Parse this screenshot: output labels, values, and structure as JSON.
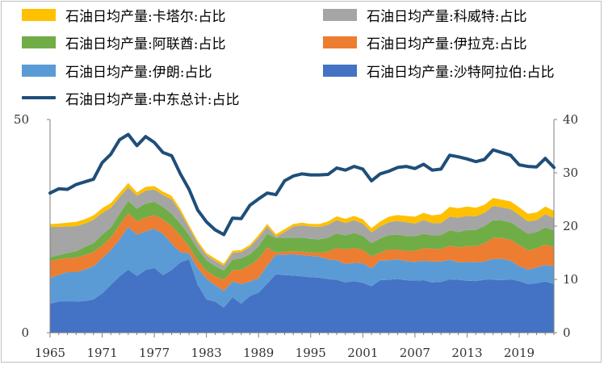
{
  "chart_data": {
    "type": "area",
    "title": "",
    "xlabel": "",
    "ylabel": "",
    "ylim_left": [
      0,
      50
    ],
    "ylim_right": [
      0,
      40
    ],
    "left_ticks": [
      "0",
      "50"
    ],
    "right_ticks": [
      "0",
      "10",
      "20",
      "30",
      "40"
    ],
    "x_tick_labels": [
      "1965",
      "1971",
      "1977",
      "1983",
      "1989",
      "1995",
      "2001",
      "2007",
      "2013",
      "2019"
    ],
    "x": [
      1965,
      1966,
      1967,
      1968,
      1969,
      1970,
      1971,
      1972,
      1973,
      1974,
      1975,
      1976,
      1977,
      1978,
      1979,
      1980,
      1981,
      1982,
      1983,
      1984,
      1985,
      1986,
      1987,
      1988,
      1989,
      1990,
      1991,
      1992,
      1993,
      1994,
      1995,
      1996,
      1997,
      1998,
      1999,
      2000,
      2001,
      2002,
      2003,
      2004,
      2005,
      2006,
      2007,
      2008,
      2009,
      2010,
      2011,
      2012,
      2013,
      2014,
      2015,
      2016,
      2017,
      2018,
      2019,
      2020,
      2021,
      2022,
      2023
    ],
    "stacked_series": [
      {
        "name": "石油日均产量:沙特阿拉伯:占比",
        "color": "#4472C4",
        "values": [
          6.8,
          7.3,
          7.3,
          7.3,
          7.4,
          7.8,
          9.2,
          11.2,
          13.2,
          14.8,
          13.3,
          14.7,
          15.2,
          13.5,
          14.7,
          16.5,
          17.2,
          11.2,
          7.8,
          7.3,
          5.9,
          8.3,
          6.8,
          8.6,
          9.4,
          11.5,
          13.7,
          13.5,
          13.4,
          13.2,
          13.0,
          12.9,
          12.6,
          12.4,
          11.8,
          12.1,
          11.7,
          10.9,
          12.3,
          12.4,
          12.6,
          12.3,
          12.2,
          12.3,
          11.8,
          11.9,
          12.5,
          12.4,
          12.2,
          12.1,
          12.4,
          12.4,
          12.3,
          12.5,
          12.1,
          11.4,
          11.6,
          12.0,
          11.4
        ]
      },
      {
        "name": "石油日均产量:伊朗:占比",
        "color": "#5B9BD5",
        "values": [
          6.0,
          6.3,
          6.9,
          6.9,
          7.4,
          7.8,
          8.3,
          8.2,
          8.7,
          10.0,
          9.7,
          9.1,
          9.2,
          9.7,
          6.2,
          2.4,
          1.4,
          3.9,
          4.9,
          3.9,
          3.9,
          3.7,
          4.6,
          3.4,
          3.4,
          4.3,
          4.6,
          4.8,
          5.0,
          5.0,
          5.0,
          4.9,
          4.6,
          4.6,
          4.3,
          4.3,
          4.6,
          4.2,
          4.7,
          4.6,
          4.6,
          4.5,
          4.4,
          4.6,
          4.9,
          4.8,
          4.6,
          4.1,
          4.4,
          4.4,
          4.3,
          4.9,
          5.0,
          4.4,
          3.5,
          3.4,
          3.7,
          3.9,
          4.1
        ]
      },
      {
        "name": "石油日均产量:伊拉克:占比",
        "color": "#ED7D31",
        "values": [
          4.0,
          3.6,
          3.3,
          3.4,
          3.4,
          3.3,
          3.0,
          2.9,
          3.4,
          3.2,
          3.2,
          3.2,
          3.2,
          3.4,
          4.1,
          3.9,
          1.6,
          1.8,
          1.8,
          2.0,
          2.6,
          2.6,
          3.4,
          3.8,
          4.6,
          4.2,
          0.5,
          0.7,
          0.7,
          0.8,
          0.8,
          0.9,
          1.8,
          2.9,
          3.4,
          3.5,
          3.1,
          2.8,
          1.8,
          2.5,
          2.3,
          2.4,
          2.6,
          2.9,
          3.0,
          2.9,
          3.3,
          3.5,
          3.7,
          3.8,
          4.3,
          4.9,
          4.9,
          4.9,
          5.0,
          4.5,
          4.5,
          4.8,
          4.6
        ]
      },
      {
        "name": "石油日均产量:阿联酋:占比",
        "color": "#70AD47",
        "values": [
          0.9,
          1.0,
          1.2,
          1.5,
          1.9,
          2.1,
          2.5,
          2.4,
          2.6,
          2.9,
          2.9,
          3.3,
          3.1,
          2.9,
          2.9,
          2.8,
          2.7,
          2.7,
          2.5,
          2.4,
          2.2,
          2.5,
          2.7,
          2.6,
          2.9,
          3.2,
          3.4,
          3.3,
          3.2,
          3.3,
          3.2,
          3.2,
          3.3,
          3.4,
          3.3,
          3.5,
          3.3,
          3.1,
          3.3,
          3.4,
          3.5,
          3.5,
          3.4,
          3.4,
          3.1,
          3.3,
          3.6,
          3.6,
          3.8,
          3.8,
          4.0,
          4.2,
          4.1,
          4.1,
          4.0,
          3.9,
          3.8,
          4.0,
          3.9
        ]
      },
      {
        "name": "石油日均产量:科威特:占比",
        "color": "#A5A5A5",
        "values": [
          7.1,
          6.6,
          6.2,
          5.9,
          5.5,
          5.5,
          5.1,
          4.6,
          3.9,
          3.2,
          3.0,
          3.0,
          2.9,
          2.8,
          3.4,
          2.7,
          1.7,
          1.3,
          1.2,
          1.2,
          1.1,
          1.6,
          1.4,
          1.7,
          2.0,
          1.7,
          0.3,
          1.3,
          2.6,
          2.9,
          2.9,
          2.9,
          3.0,
          3.1,
          2.9,
          3.0,
          2.9,
          2.5,
          2.8,
          3.0,
          3.2,
          3.2,
          3.0,
          3.2,
          2.9,
          2.8,
          3.2,
          3.4,
          3.3,
          3.2,
          3.1,
          3.3,
          3.1,
          3.1,
          3.0,
          2.9,
          2.8,
          3.1,
          2.9
        ]
      },
      {
        "name": "石油日均产量:卡塔尔:占比",
        "color": "#FFC000",
        "values": [
          0.7,
          0.8,
          0.9,
          1.0,
          1.0,
          1.0,
          1.1,
          1.1,
          1.0,
          1.0,
          0.8,
          0.9,
          0.8,
          0.8,
          0.8,
          0.7,
          0.6,
          0.6,
          0.5,
          0.6,
          0.5,
          0.5,
          0.5,
          0.5,
          0.6,
          0.6,
          0.6,
          0.7,
          0.6,
          0.6,
          0.6,
          0.7,
          0.8,
          0.9,
          1.0,
          1.0,
          1.0,
          1.0,
          1.2,
          1.3,
          1.4,
          1.5,
          1.6,
          1.7,
          1.8,
          2.1,
          2.3,
          2.2,
          2.2,
          2.0,
          1.9,
          1.9,
          1.8,
          1.8,
          1.8,
          1.8,
          1.8,
          1.8,
          1.7
        ]
      }
    ],
    "line_series": {
      "name": "石油日均产量:中东总计:占比",
      "color": "#1F4E79",
      "axis": "right",
      "values": [
        26.2,
        27.0,
        26.9,
        27.8,
        28.3,
        28.8,
        31.9,
        33.5,
        36.2,
        37.2,
        35.1,
        36.8,
        35.7,
        33.8,
        33.2,
        29.8,
        26.9,
        23.0,
        20.8,
        19.3,
        18.4,
        21.5,
        21.4,
        23.9,
        25.1,
        26.2,
        25.9,
        28.5,
        29.4,
        29.8,
        29.6,
        29.6,
        29.7,
        30.9,
        30.5,
        31.2,
        30.7,
        28.5,
        29.8,
        30.3,
        31.0,
        31.2,
        30.8,
        31.6,
        30.5,
        30.7,
        33.3,
        33.0,
        32.6,
        32.1,
        32.5,
        34.3,
        33.8,
        33.3,
        31.5,
        31.2,
        31.1,
        32.7,
        31.0
      ]
    },
    "legend_position": "top"
  },
  "legend": {
    "items": [
      {
        "label": "石油日均产量:卡塔尔:占比",
        "color": "#FFC000",
        "kind": "area"
      },
      {
        "label": "石油日均产量:科威特:占比",
        "color": "#A5A5A5",
        "kind": "area"
      },
      {
        "label": "石油日均产量:阿联酋:占比",
        "color": "#70AD47",
        "kind": "area"
      },
      {
        "label": "石油日均产量:伊拉克:占比",
        "color": "#ED7D31",
        "kind": "area"
      },
      {
        "label": "石油日均产量:伊朗:占比",
        "color": "#5B9BD5",
        "kind": "area"
      },
      {
        "label": "石油日均产量:沙特阿拉伯:占比",
        "color": "#4472C4",
        "kind": "area"
      },
      {
        "label": "石油日均产量:中东总计:占比",
        "color": "#1F4E79",
        "kind": "line"
      }
    ]
  }
}
